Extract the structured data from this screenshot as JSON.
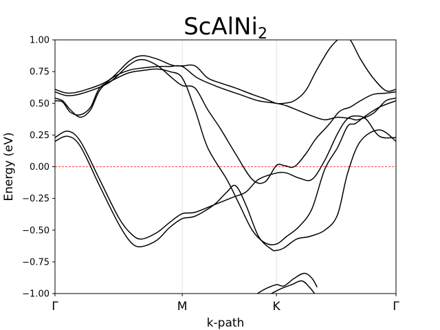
{
  "chart_data": {
    "type": "line",
    "title": {
      "main": "ScAlNi",
      "subscript": "2"
    },
    "xlabel": "k-path",
    "ylabel": "Energy (eV)",
    "x_ticks": [
      {
        "label": "Γ",
        "pos": 0.0
      },
      {
        "label": "M",
        "pos": 1.0
      },
      {
        "label": "K",
        "pos": 1.74
      },
      {
        "label": "Γ",
        "pos": 2.68
      }
    ],
    "xlim": [
      0,
      2.68
    ],
    "ylim": [
      -1.0,
      1.0
    ],
    "y_ticks": [
      "−1.00",
      "−0.75",
      "−0.50",
      "−0.25",
      "0.00",
      "0.25",
      "0.50",
      "0.75",
      "1.00"
    ],
    "y_tick_values": [
      -1.0,
      -0.75,
      -0.5,
      -0.25,
      0.0,
      0.25,
      0.5,
      0.75,
      1.0
    ],
    "fermi_level": 0.0,
    "colors": {
      "bands": "#000000",
      "fermi": "#ff0000",
      "grid": "#d9d9d9"
    },
    "grid": "vertical at high-symmetry points",
    "series": [
      {
        "x": [
          0,
          0.1,
          0.22,
          0.42,
          0.58,
          0.68,
          0.8,
          0.92,
          1.0,
          1.1,
          1.2,
          1.3,
          1.42,
          1.55,
          1.65,
          1.74,
          1.8,
          1.88,
          1.97,
          2.05,
          2.15,
          2.22,
          2.26,
          2.32,
          2.4,
          2.5,
          2.6,
          2.68
        ],
        "y": [
          0.61,
          0.58,
          0.6,
          0.68,
          0.83,
          0.875,
          0.85,
          0.8,
          0.795,
          0.795,
          0.7,
          0.66,
          0.62,
          0.57,
          0.535,
          0.5,
          0.5,
          0.52,
          0.6,
          0.75,
          0.92,
          1.0,
          1.02,
          1.0,
          0.85,
          0.7,
          0.6,
          0.61
        ]
      },
      {
        "x": [
          0,
          0.1,
          0.22,
          0.42,
          0.58,
          0.68,
          0.8,
          0.92,
          1.0,
          1.1,
          1.2,
          1.3,
          1.42,
          1.55,
          1.65,
          1.74,
          1.8,
          1.88,
          1.97,
          2.05,
          2.15,
          2.22,
          2.26,
          2.32,
          2.4,
          2.5,
          2.6,
          2.68
        ],
        "y": [
          0.59,
          0.56,
          0.58,
          0.66,
          0.8,
          0.845,
          0.8,
          0.7,
          0.64,
          0.62,
          0.45,
          0.3,
          0.1,
          -0.1,
          -0.12,
          0.01,
          0.01,
          0.0,
          0.1,
          0.22,
          0.33,
          0.42,
          0.45,
          0.47,
          0.52,
          0.57,
          0.58,
          0.59
        ]
      },
      {
        "x": [
          0,
          0.06,
          0.12,
          0.2,
          0.28,
          0.35,
          0.45,
          0.58,
          0.7,
          0.8,
          0.9,
          1.0,
          1.12,
          1.28,
          1.45,
          1.6,
          1.74,
          1.82,
          1.92,
          2.02,
          2.12,
          2.22,
          2.32,
          2.38,
          2.5,
          2.6,
          2.68
        ],
        "y": [
          0.54,
          0.52,
          0.45,
          0.39,
          0.45,
          0.6,
          0.7,
          0.76,
          0.78,
          0.79,
          0.79,
          0.79,
          0.7,
          0.63,
          0.57,
          0.52,
          0.5,
          0.48,
          0.44,
          0.4,
          0.37,
          0.39,
          0.38,
          0.37,
          0.42,
          0.52,
          0.54
        ]
      },
      {
        "x": [
          0,
          0.06,
          0.12,
          0.2,
          0.28,
          0.35,
          0.45,
          0.58,
          0.7,
          0.8,
          0.9,
          1.0,
          1.1,
          1.2,
          1.35,
          1.45,
          1.55,
          1.65,
          1.74,
          1.82,
          1.92,
          2.02,
          2.12,
          2.22,
          2.3,
          2.36,
          2.44,
          2.55,
          2.68
        ],
        "y": [
          0.52,
          0.51,
          0.43,
          0.41,
          0.47,
          0.62,
          0.68,
          0.74,
          0.76,
          0.77,
          0.75,
          0.7,
          0.45,
          0.15,
          -0.1,
          -0.3,
          -0.5,
          -0.6,
          -0.61,
          -0.55,
          -0.47,
          -0.33,
          -0.02,
          0.15,
          0.32,
          0.34,
          0.4,
          0.47,
          0.52
        ]
      },
      {
        "x": [
          0,
          0.1,
          0.2,
          0.35,
          0.5,
          0.6,
          0.68,
          0.8,
          0.9,
          1.0,
          1.1,
          1.25,
          1.4,
          1.5,
          1.6,
          1.74,
          1.82,
          1.92,
          2.02,
          2.12,
          2.22,
          2.3,
          2.38,
          2.45,
          2.55,
          2.68
        ],
        "y": [
          0.23,
          0.28,
          0.2,
          -0.1,
          -0.4,
          -0.53,
          -0.57,
          -0.52,
          -0.44,
          -0.37,
          -0.36,
          -0.3,
          -0.24,
          -0.2,
          -0.1,
          -0.05,
          -0.05,
          -0.09,
          -0.1,
          0.05,
          0.26,
          0.38,
          0.4,
          0.37,
          0.24,
          0.23
        ]
      },
      {
        "x": [
          0,
          0.1,
          0.2,
          0.35,
          0.5,
          0.6,
          0.68,
          0.8,
          0.9,
          1.0,
          1.1,
          1.25,
          1.35,
          1.42,
          1.5,
          1.6,
          1.7,
          1.74,
          1.8,
          1.9,
          2.0,
          2.12,
          2.22,
          2.3,
          2.4,
          2.55,
          2.68
        ],
        "y": [
          0.2,
          0.24,
          0.16,
          -0.15,
          -0.45,
          -0.6,
          -0.63,
          -0.58,
          -0.48,
          -0.41,
          -0.39,
          -0.3,
          -0.2,
          -0.15,
          -0.3,
          -0.55,
          -0.65,
          -0.66,
          -0.64,
          -0.57,
          -0.55,
          -0.5,
          -0.38,
          -0.05,
          0.2,
          0.29,
          0.2
        ]
      },
      {
        "x": [
          1.59,
          1.66,
          1.74,
          1.8,
          1.88,
          1.96,
          2.02,
          2.06
        ],
        "y": [
          -1.0,
          -0.96,
          -0.93,
          -0.94,
          -0.88,
          -0.84,
          -0.88,
          -0.95
        ]
      },
      {
        "x": [
          1.7,
          1.78,
          1.86,
          1.94,
          2.0,
          2.04
        ],
        "y": [
          -1.0,
          -0.96,
          -0.93,
          -0.9,
          -0.95,
          -1.0
        ]
      }
    ]
  }
}
